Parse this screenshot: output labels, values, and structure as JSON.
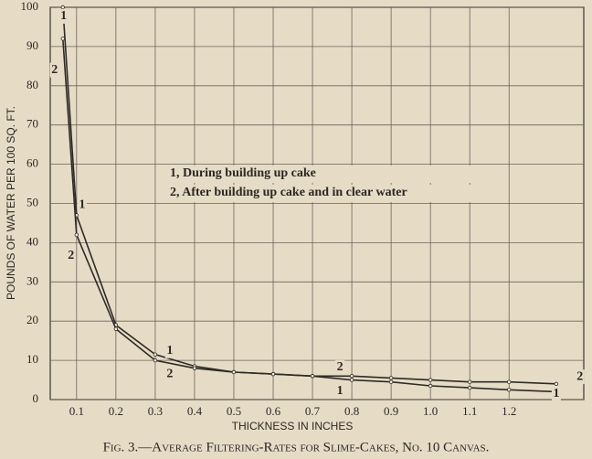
{
  "chart_data": {
    "type": "line",
    "title": "Fig. 3.—Average Filtering-Rates for Slime-Cakes, No. 10 Canvas.",
    "x_label": "THICKNESS IN INCHES",
    "y_label": "POUNDS OF WATER PER 100 SQ. FT.",
    "x": [
      0.065,
      0.1,
      0.2,
      0.3,
      0.4,
      0.5,
      0.6,
      0.7,
      0.8,
      0.9,
      1.0,
      1.1,
      1.2,
      1.32
    ],
    "series": [
      {
        "name": "1, During building up cake",
        "color": "#2e2a26",
        "values": [
          100,
          47,
          19,
          11.5,
          8.5,
          7,
          6.5,
          6,
          5,
          4.5,
          3.5,
          3,
          2.5,
          2
        ]
      },
      {
        "name": "2, After building up cake and in clear water",
        "color": "#2e2a26",
        "values": [
          92,
          42,
          18,
          10,
          8,
          7,
          6.5,
          6,
          6,
          5.5,
          5,
          4.5,
          4.5,
          4
        ]
      }
    ],
    "annotations": [
      {
        "text": "1",
        "x": 0.067,
        "y": 97.7
      },
      {
        "text": "2",
        "x": 0.044,
        "y": 84
      },
      {
        "text": "1",
        "x": 0.114,
        "y": 49.6
      },
      {
        "text": "2",
        "x": 0.086,
        "y": 36.6
      },
      {
        "text": "1",
        "x": 0.337,
        "y": 12.4
      },
      {
        "text": "2",
        "x": 0.337,
        "y": 6.5
      },
      {
        "text": "2",
        "x": 0.77,
        "y": 8.2
      },
      {
        "text": "1",
        "x": 0.77,
        "y": 2.1
      },
      {
        "text": "1",
        "x": 1.32,
        "y": 1.4
      },
      {
        "text": "2",
        "x": 1.38,
        "y": 5.8
      }
    ],
    "xlim": [
      0.033,
      1.39
    ],
    "ylim": [
      0,
      100
    ],
    "xticks": [
      0.1,
      0.2,
      0.3,
      0.4,
      0.5,
      0.6,
      0.7,
      0.8,
      0.9,
      {
        "value": 1.0,
        "label": "1.0"
      },
      1.1,
      1.2
    ],
    "yticks": [
      0,
      10,
      20,
      30,
      40,
      50,
      60,
      70,
      80,
      90,
      100
    ],
    "grid": true
  }
}
